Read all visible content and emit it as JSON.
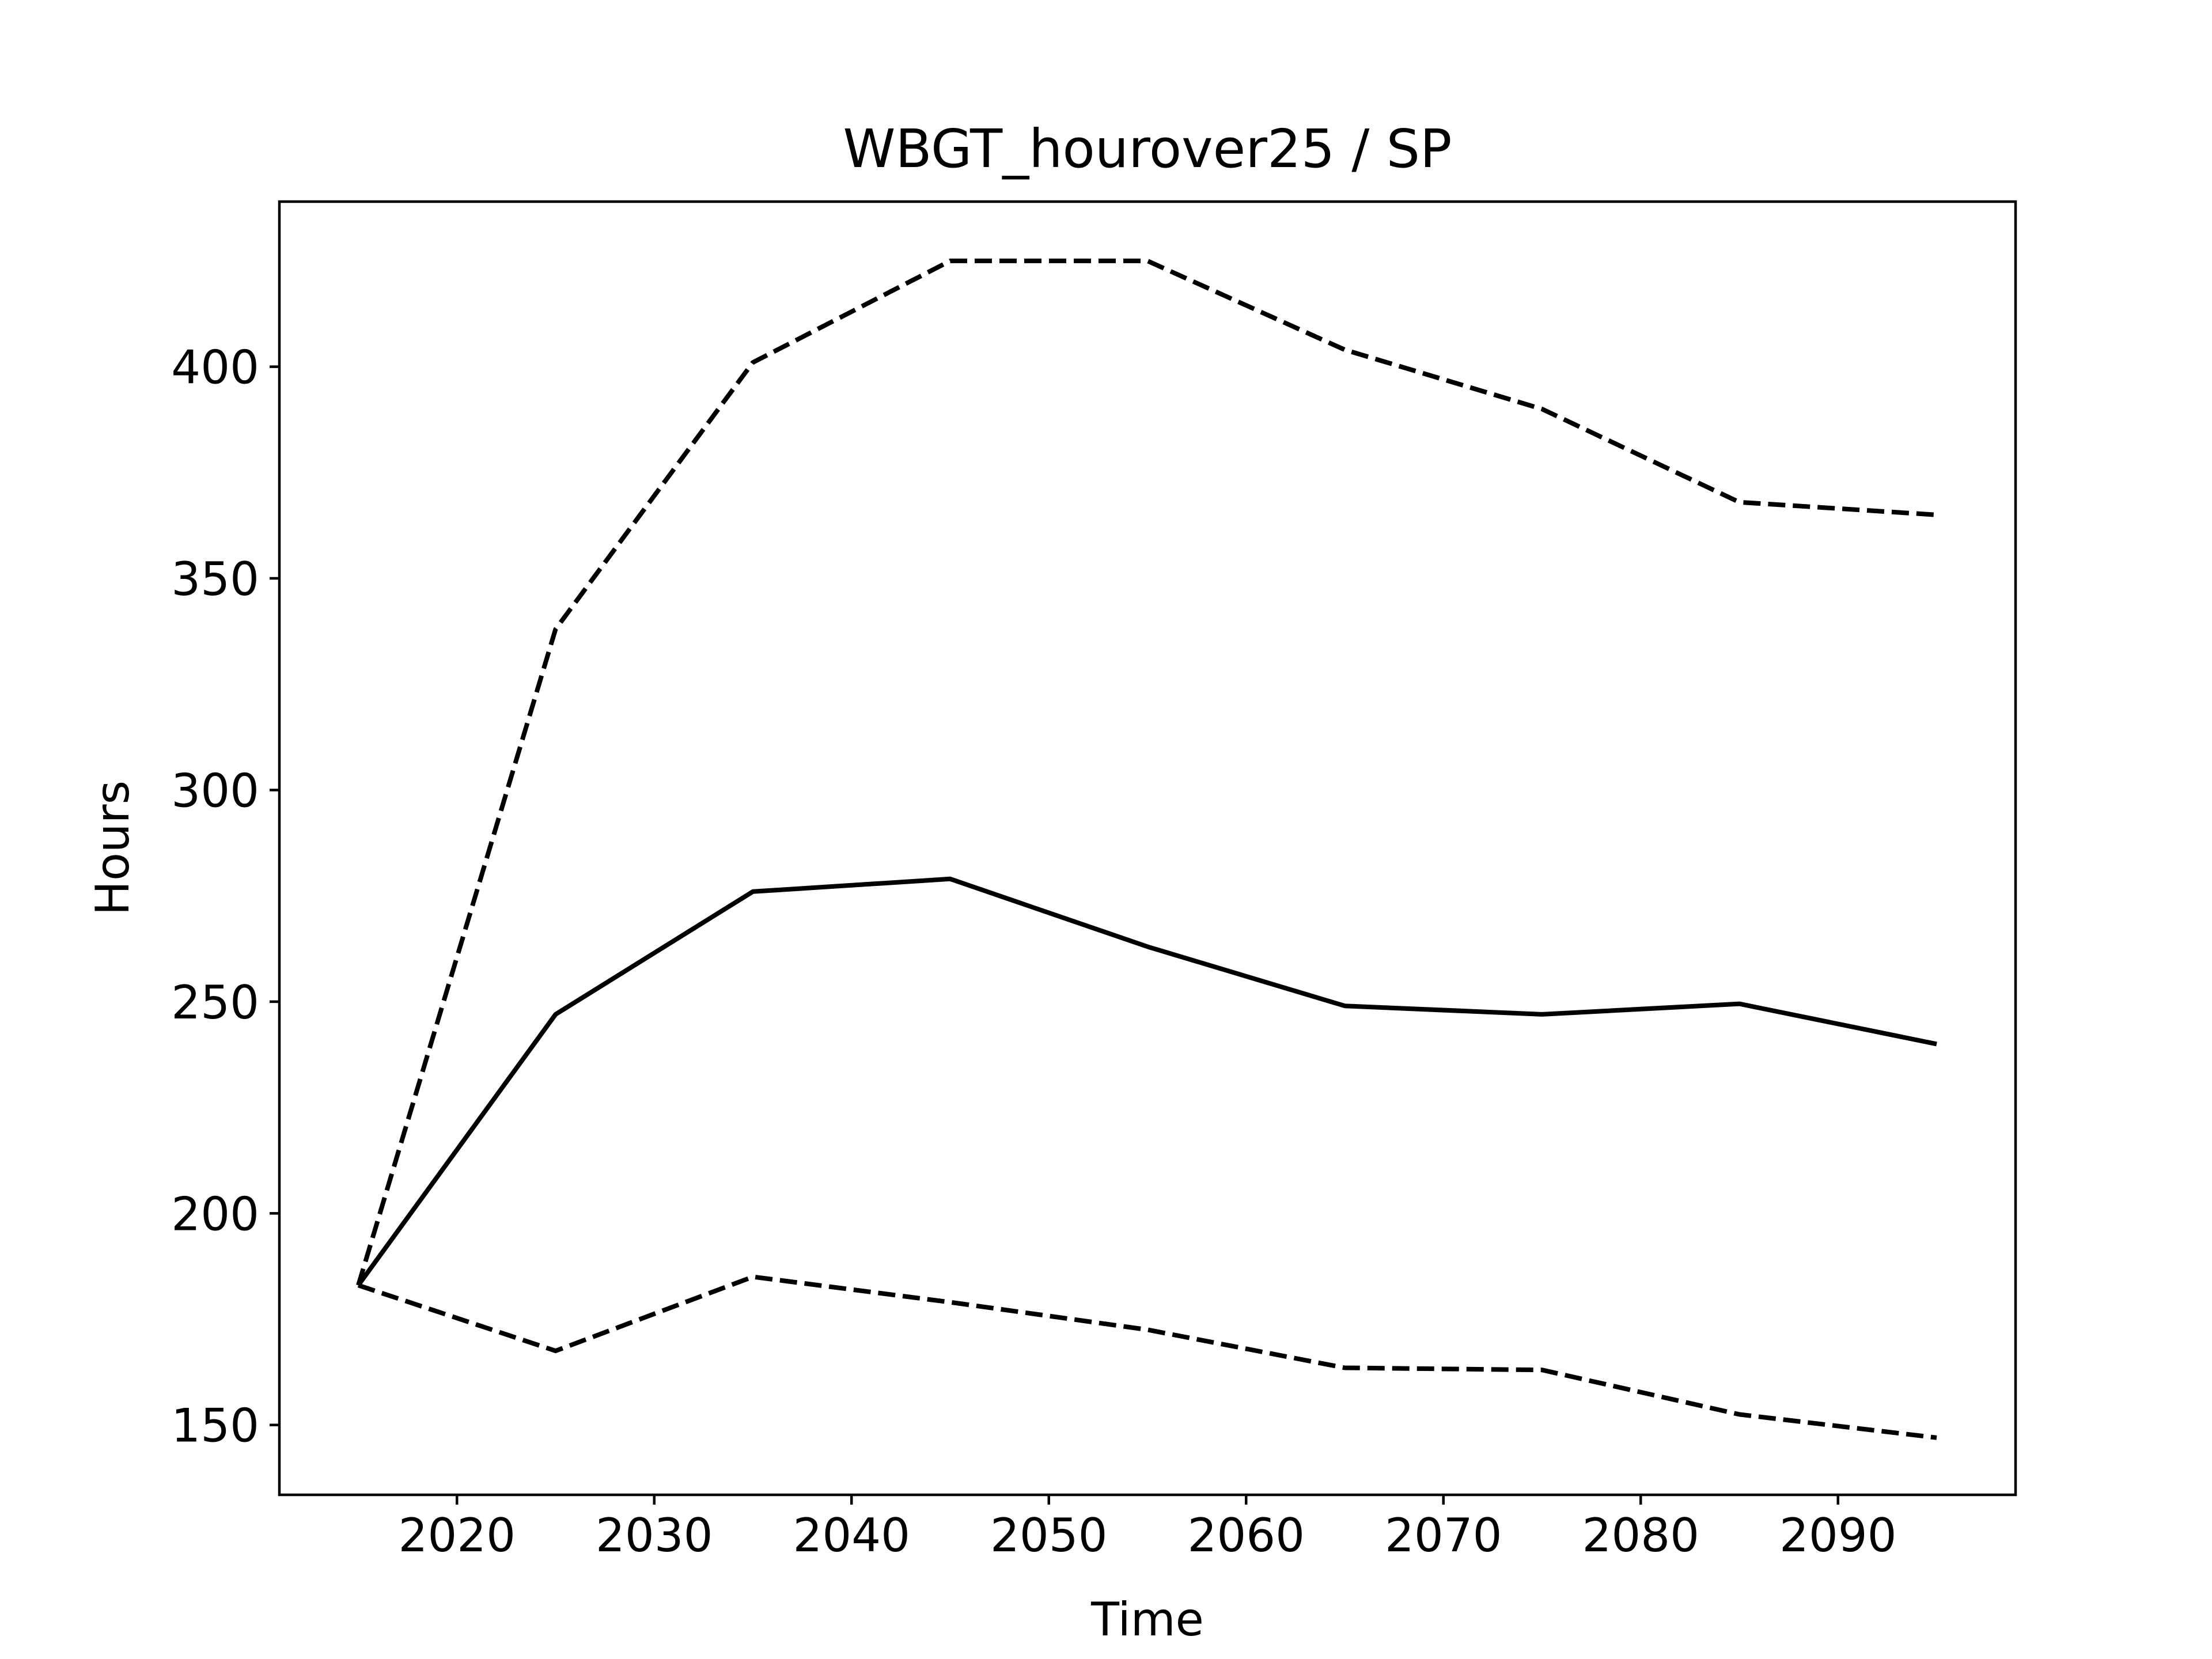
{
  "chart_data": {
    "type": "line",
    "title": "WBGT_hourover25 / SP",
    "xlabel": "Time",
    "ylabel": "Hours",
    "xlim": [
      2011,
      2099
    ],
    "ylim": [
      133.5,
      439
    ],
    "xticks": [
      2020,
      2030,
      2040,
      2050,
      2060,
      2070,
      2080,
      2090
    ],
    "yticks": [
      150,
      200,
      250,
      300,
      350,
      400
    ],
    "grid": false,
    "legend": null,
    "x": [
      2015,
      2025,
      2035,
      2045,
      2055,
      2065,
      2075,
      2085,
      2095
    ],
    "series": [
      {
        "style": "solid",
        "color": "#000000",
        "values": [
          183,
          247,
          276,
          279,
          263,
          249,
          247,
          249.5,
          240
        ]
      },
      {
        "style": "dashed",
        "color": "#000000",
        "values": [
          183,
          338,
          401,
          425,
          425,
          404,
          390,
          368,
          365
        ]
      },
      {
        "style": "dashed",
        "color": "#000000",
        "values": [
          183,
          167.5,
          185,
          179,
          172.5,
          163.5,
          163,
          152.5,
          147
        ]
      }
    ]
  }
}
